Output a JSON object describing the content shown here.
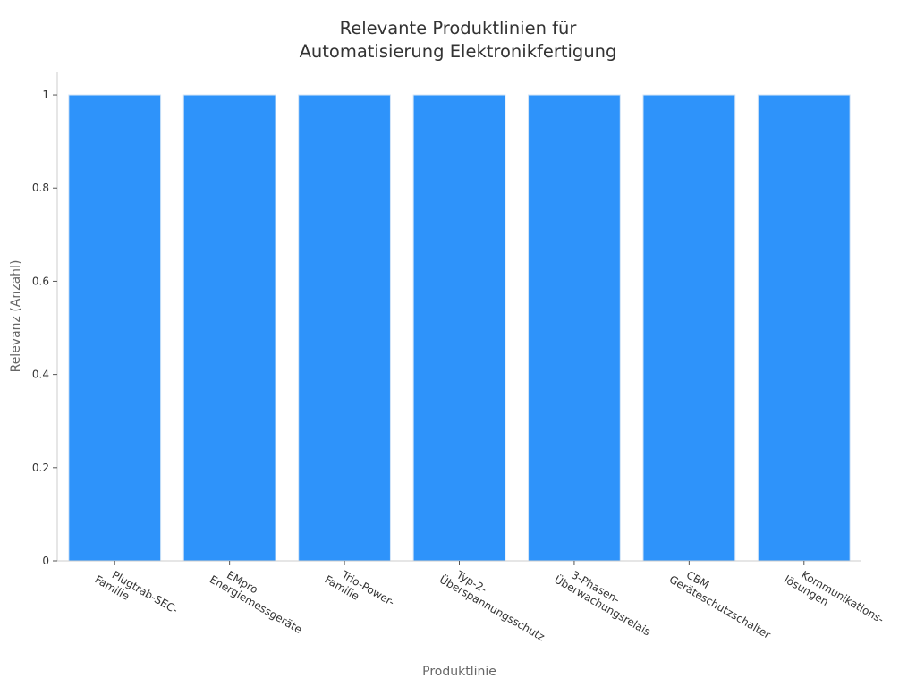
{
  "chart_data": {
    "type": "bar",
    "title_lines": [
      "Relevante Produktlinien für",
      "Automatisierung Elektronikfertigung"
    ],
    "categories": [
      [
        "Plugtrab-SEC-",
        "Familie"
      ],
      [
        "EMpro",
        "Energiemessgeräte"
      ],
      [
        "Trio-Power-",
        "Familie"
      ],
      [
        "Typ-2-",
        "Überspannungsschutz"
      ],
      [
        "3-Phasen-",
        "Überwachungsrelais"
      ],
      [
        "CBM",
        "Geräteschutzschalter"
      ],
      [
        "Kommunikations-",
        "lösungen"
      ]
    ],
    "values": [
      1,
      1,
      1,
      1,
      1,
      1,
      1
    ],
    "xlabel": "Produktlinie",
    "ylabel": "Relevanz (Anzahl)",
    "ylim": [
      0,
      1.05
    ],
    "yticks": [
      0,
      0.2,
      0.4,
      0.6,
      0.8,
      1
    ],
    "ytick_labels": [
      "0",
      "0.2",
      "0.4",
      "0.6",
      "0.8",
      "1"
    ],
    "bar_color": "#2E93FA",
    "bar_edge_color": "#cfe3f7",
    "axis_color": "#cccccc",
    "grid": false,
    "legend": "none"
  }
}
